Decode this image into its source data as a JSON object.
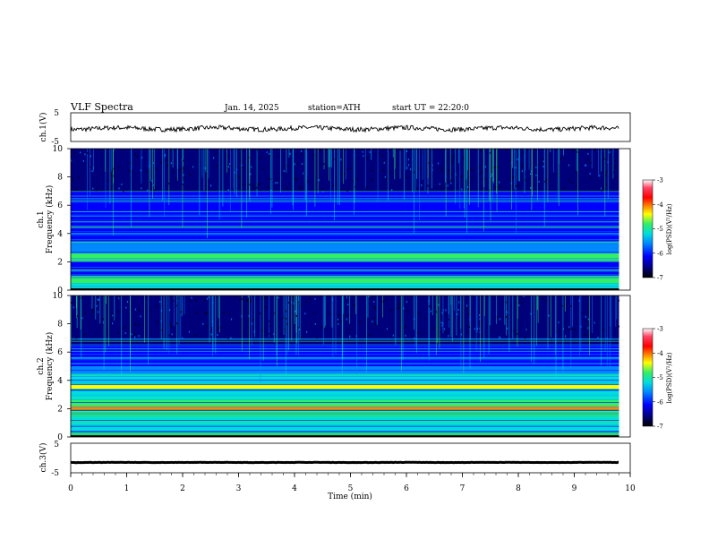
{
  "header": {
    "title": "VLF Spectra",
    "date": "Jan. 14, 2025",
    "station": "station=ATH",
    "start": "start UT =  22:20:0"
  },
  "colors": {
    "colormap": [
      "#000000",
      "#00007a",
      "#0000ff",
      "#0088ff",
      "#00dddd",
      "#33ee66",
      "#ffff00",
      "#ff8800",
      "#ff0000",
      "#ff4466",
      "#ffffff"
    ],
    "trace": "#000000"
  },
  "chart_data": [
    {
      "type": "line",
      "ylabel": "ch.1(V)",
      "yticks": [
        "5",
        "-5"
      ],
      "ylim": [
        -5,
        5
      ],
      "x_range_min": [
        0,
        9.8
      ],
      "mean_value": -0.5
    },
    {
      "type": "heatmap",
      "ylabel_top": "ch.1",
      "ylabel": "Frequency (kHz)",
      "yticks": [
        "0",
        "2",
        "4",
        "6",
        "8",
        "10"
      ],
      "ylim": [
        0,
        10
      ],
      "x_range_min": [
        0,
        9.8
      ],
      "colorbar": {
        "label": "log(PSD)(V²/Hz)",
        "ticks": [
          "-3",
          "-4",
          "-5",
          "-6",
          "-7"
        ],
        "range": [
          -7,
          -3
        ]
      }
    },
    {
      "type": "heatmap",
      "ylabel_top": "ch.2",
      "ylabel": "Frequency (kHz)",
      "yticks": [
        "0",
        "2",
        "4",
        "6",
        "8",
        "10"
      ],
      "ylim": [
        0,
        10
      ],
      "x_range_min": [
        0,
        9.8
      ],
      "colorbar": {
        "label": "log(PSD)(V²/Hz)",
        "ticks": [
          "-3",
          "-4",
          "-5",
          "-6",
          "-7"
        ],
        "range": [
          -7,
          -3
        ]
      }
    },
    {
      "type": "line",
      "ylabel": "ch.3(V)",
      "yticks": [
        "5",
        "-5"
      ],
      "ylim": [
        -5,
        5
      ],
      "x_range_min": [
        0,
        9.8
      ],
      "mean_value": -1.5,
      "xlabel": "Time (min)",
      "xticks": [
        "0",
        "1",
        "2",
        "3",
        "4",
        "5",
        "6",
        "7",
        "8",
        "9",
        "10"
      ],
      "xlim": [
        0,
        10
      ]
    }
  ]
}
